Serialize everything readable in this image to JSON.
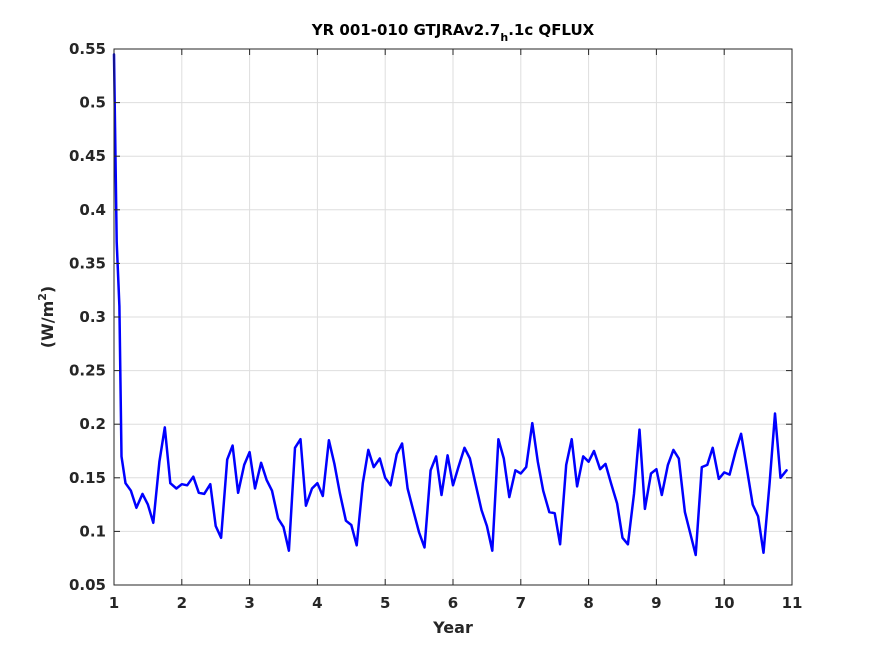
{
  "chart_data": {
    "type": "line",
    "title_main": "YR 001-010 GTJRAv2.7",
    "title_sub": "h",
    "title_tail": ".1c QFLUX",
    "xlabel": "Year",
    "ylabel_main": "(W/m",
    "ylabel_sup": "2",
    "ylabel_tail": ")",
    "xlim": [
      1,
      11
    ],
    "ylim": [
      0.05,
      0.55
    ],
    "xticks": [
      1,
      2,
      3,
      4,
      5,
      6,
      7,
      8,
      9,
      10,
      11
    ],
    "yticks": [
      0.05,
      0.1,
      0.15,
      0.2,
      0.25,
      0.3,
      0.35,
      0.4,
      0.45,
      0.5,
      0.55
    ],
    "ytick_labels": [
      "0.05",
      "0.1",
      "0.15",
      "0.2",
      "0.25",
      "0.3",
      "0.35",
      "0.4",
      "0.45",
      "0.5",
      "0.55"
    ],
    "grid": true,
    "line_color": "#0000ff",
    "series": [
      {
        "values": [
          [
            1.0,
            0.545
          ],
          [
            1.04,
            0.37
          ],
          [
            1.08,
            0.31
          ],
          [
            1.11,
            0.17
          ],
          [
            1.17,
            0.145
          ],
          [
            1.25,
            0.138
          ],
          [
            1.33,
            0.122
          ],
          [
            1.42,
            0.135
          ],
          [
            1.5,
            0.125
          ],
          [
            1.58,
            0.108
          ],
          [
            1.67,
            0.165
          ],
          [
            1.75,
            0.197
          ],
          [
            1.83,
            0.145
          ],
          [
            1.92,
            0.14
          ],
          [
            2.0,
            0.144
          ],
          [
            2.08,
            0.143
          ],
          [
            2.17,
            0.151
          ],
          [
            2.25,
            0.136
          ],
          [
            2.33,
            0.135
          ],
          [
            2.42,
            0.144
          ],
          [
            2.5,
            0.105
          ],
          [
            2.58,
            0.094
          ],
          [
            2.67,
            0.167
          ],
          [
            2.75,
            0.18
          ],
          [
            2.83,
            0.136
          ],
          [
            2.92,
            0.162
          ],
          [
            3.0,
            0.174
          ],
          [
            3.08,
            0.14
          ],
          [
            3.17,
            0.164
          ],
          [
            3.25,
            0.148
          ],
          [
            3.33,
            0.138
          ],
          [
            3.42,
            0.112
          ],
          [
            3.5,
            0.104
          ],
          [
            3.58,
            0.082
          ],
          [
            3.67,
            0.178
          ],
          [
            3.75,
            0.186
          ],
          [
            3.83,
            0.124
          ],
          [
            3.92,
            0.14
          ],
          [
            4.0,
            0.145
          ],
          [
            4.08,
            0.133
          ],
          [
            4.17,
            0.185
          ],
          [
            4.25,
            0.163
          ],
          [
            4.33,
            0.136
          ],
          [
            4.42,
            0.11
          ],
          [
            4.5,
            0.106
          ],
          [
            4.58,
            0.087
          ],
          [
            4.67,
            0.145
          ],
          [
            4.75,
            0.176
          ],
          [
            4.83,
            0.16
          ],
          [
            4.92,
            0.168
          ],
          [
            5.0,
            0.15
          ],
          [
            5.08,
            0.143
          ],
          [
            5.17,
            0.172
          ],
          [
            5.25,
            0.182
          ],
          [
            5.33,
            0.14
          ],
          [
            5.42,
            0.118
          ],
          [
            5.5,
            0.099
          ],
          [
            5.58,
            0.085
          ],
          [
            5.67,
            0.157
          ],
          [
            5.75,
            0.17
          ],
          [
            5.83,
            0.134
          ],
          [
            5.92,
            0.171
          ],
          [
            6.0,
            0.143
          ],
          [
            6.08,
            0.16
          ],
          [
            6.17,
            0.178
          ],
          [
            6.25,
            0.168
          ],
          [
            6.33,
            0.145
          ],
          [
            6.42,
            0.12
          ],
          [
            6.5,
            0.105
          ],
          [
            6.58,
            0.082
          ],
          [
            6.67,
            0.186
          ],
          [
            6.75,
            0.168
          ],
          [
            6.83,
            0.132
          ],
          [
            6.92,
            0.157
          ],
          [
            7.0,
            0.154
          ],
          [
            7.08,
            0.16
          ],
          [
            7.17,
            0.201
          ],
          [
            7.25,
            0.165
          ],
          [
            7.33,
            0.138
          ],
          [
            7.42,
            0.118
          ],
          [
            7.5,
            0.117
          ],
          [
            7.58,
            0.088
          ],
          [
            7.67,
            0.162
          ],
          [
            7.75,
            0.186
          ],
          [
            7.83,
            0.142
          ],
          [
            7.92,
            0.17
          ],
          [
            8.0,
            0.165
          ],
          [
            8.08,
            0.175
          ],
          [
            8.17,
            0.158
          ],
          [
            8.25,
            0.163
          ],
          [
            8.33,
            0.145
          ],
          [
            8.42,
            0.126
          ],
          [
            8.5,
            0.094
          ],
          [
            8.58,
            0.088
          ],
          [
            8.67,
            0.135
          ],
          [
            8.75,
            0.195
          ],
          [
            8.83,
            0.121
          ],
          [
            8.92,
            0.154
          ],
          [
            9.0,
            0.158
          ],
          [
            9.08,
            0.134
          ],
          [
            9.17,
            0.162
          ],
          [
            9.25,
            0.176
          ],
          [
            9.33,
            0.168
          ],
          [
            9.42,
            0.118
          ],
          [
            9.5,
            0.098
          ],
          [
            9.58,
            0.078
          ],
          [
            9.67,
            0.16
          ],
          [
            9.75,
            0.162
          ],
          [
            9.83,
            0.178
          ],
          [
            9.92,
            0.149
          ],
          [
            10.0,
            0.155
          ],
          [
            10.08,
            0.153
          ],
          [
            10.17,
            0.175
          ],
          [
            10.25,
            0.191
          ],
          [
            10.33,
            0.16
          ],
          [
            10.42,
            0.125
          ],
          [
            10.5,
            0.114
          ],
          [
            10.58,
            0.08
          ],
          [
            10.67,
            0.145
          ],
          [
            10.75,
            0.21
          ],
          [
            10.83,
            0.15
          ],
          [
            10.92,
            0.157
          ]
        ]
      }
    ]
  }
}
